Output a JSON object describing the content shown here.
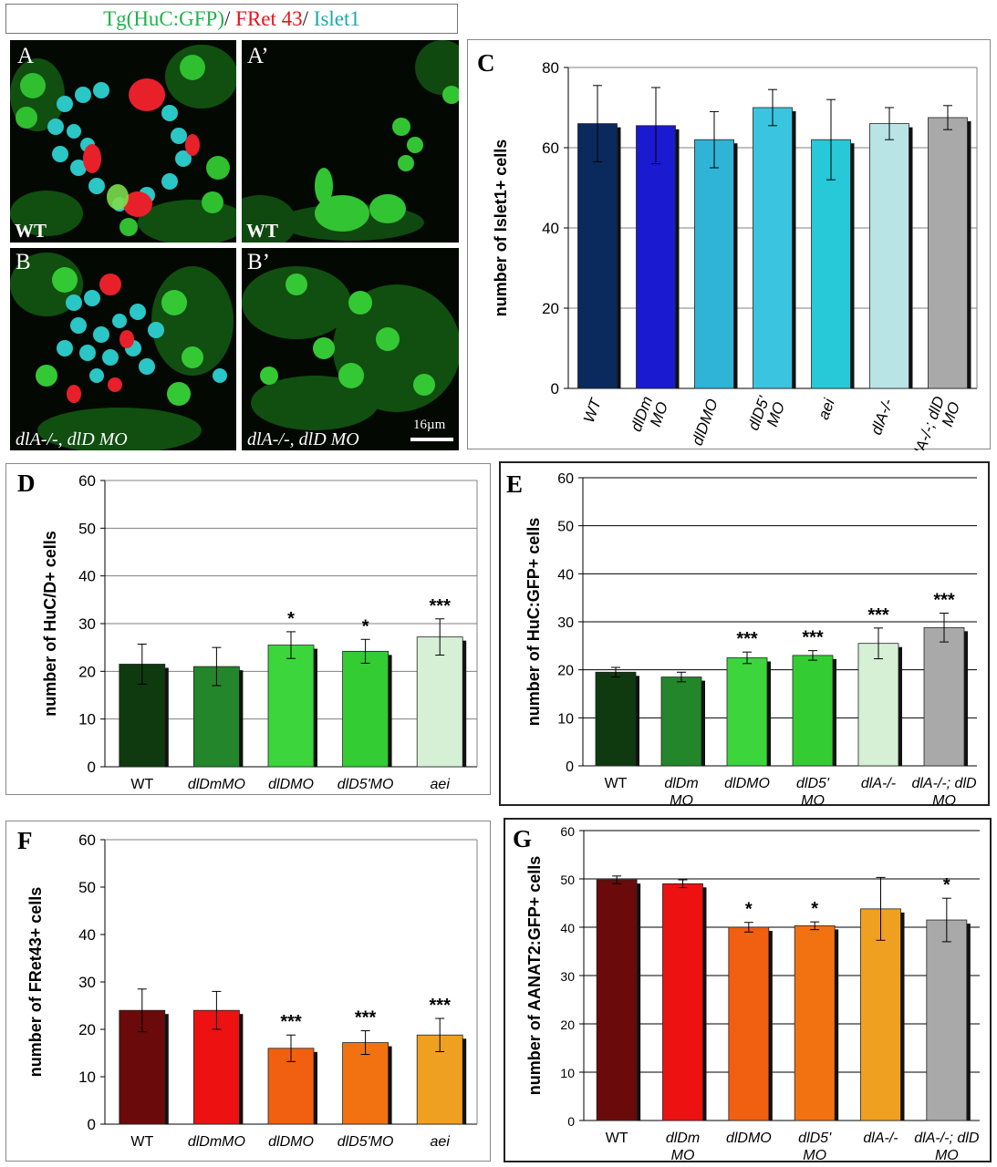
{
  "legend": {
    "huc": "Tg(HuC:GFP)",
    "sep1": "/ ",
    "fret": "FRet 43",
    "sep2": "/ ",
    "islet": "Islet1"
  },
  "images": {
    "a": {
      "letter": "A",
      "label": "WT"
    },
    "a_prime": {
      "letter": "A’",
      "label": "WT"
    },
    "b": {
      "letter": "B",
      "label": "dlA-/-, dlD MO"
    },
    "b_prime": {
      "letter": "B’",
      "label": "dlA-/-, dlD MO"
    },
    "scale": "16µm"
  },
  "colors": {
    "grid": "#808080",
    "axis": "#333333",
    "shadow": "#111111",
    "text": "#000000"
  },
  "chart_data": [
    {
      "id": "C",
      "letter": "C",
      "type": "bar",
      "ylabel": "number of Islet1+ cells",
      "ylim": [
        0,
        80
      ],
      "ticks": [
        0,
        20,
        40,
        60,
        80
      ],
      "categories": [
        "WT",
        "dlDm MO",
        "dlDMO",
        "dlD5' MO",
        "aei",
        "dlA-/-",
        "dlA-/-; dlD MO"
      ],
      "values": [
        66,
        65.5,
        62,
        70,
        62,
        66,
        67.5
      ],
      "errors": [
        9.5,
        9.5,
        7,
        4.5,
        10,
        4,
        3
      ],
      "significance": [
        "",
        "",
        "",
        "",
        "",
        "",
        ""
      ],
      "bar_colors": [
        "#0a2a5e",
        "#1a1ad0",
        "#2fb3d6",
        "#3bc4e0",
        "#27c9d8",
        "#b8e4e6",
        "#a9a9a9"
      ]
    },
    {
      "id": "D",
      "letter": "D",
      "type": "bar",
      "ylabel": "number of HuC/D+ cells",
      "ylim": [
        0,
        60
      ],
      "ticks": [
        0,
        10,
        20,
        30,
        40,
        50,
        60
      ],
      "categories": [
        "WT",
        "dlDmMO",
        "dlDMO",
        "dlD5'MO",
        "aei"
      ],
      "values": [
        21.5,
        21,
        25.5,
        24.2,
        27.2
      ],
      "errors": [
        4.2,
        4,
        2.8,
        2.5,
        3.8
      ],
      "significance": [
        "",
        "",
        "*",
        "*",
        "***"
      ],
      "bar_colors": [
        "#0f3a10",
        "#23862a",
        "#3cd63c",
        "#33cc33",
        "#d6f0d6"
      ]
    },
    {
      "id": "E",
      "letter": "E",
      "type": "bar",
      "ylabel": "number of HuC:GFP+ cells",
      "ylim": [
        0,
        60
      ],
      "ticks": [
        0,
        10,
        20,
        30,
        40,
        50,
        60
      ],
      "categories": [
        "WT",
        "dlDm MO",
        "dlDMO",
        "dlD5' MO",
        "dlA-/-",
        "dlA-/-; dlD MO"
      ],
      "values": [
        19.5,
        18.5,
        22.5,
        23,
        25.5,
        28.8
      ],
      "errors": [
        1,
        1,
        1.2,
        1,
        3.2,
        3
      ],
      "significance": [
        "",
        "",
        "***",
        "***",
        "***",
        "***"
      ],
      "bar_colors": [
        "#0f3a10",
        "#23862a",
        "#3cd63c",
        "#33cc33",
        "#d6f0d6",
        "#a9a9a9"
      ]
    },
    {
      "id": "F",
      "letter": "F",
      "type": "bar",
      "ylabel": "number of FRet43+ cells",
      "ylim": [
        0,
        60
      ],
      "ticks": [
        0,
        10,
        20,
        30,
        40,
        50,
        60
      ],
      "categories": [
        "WT",
        "dlDmMO",
        "dlDMO",
        "dlD5'MO",
        "aei"
      ],
      "values": [
        24,
        24,
        16,
        17.2,
        18.8
      ],
      "errors": [
        4.5,
        4,
        2.8,
        2.5,
        3.5
      ],
      "significance": [
        "",
        "",
        "***",
        "***",
        "***"
      ],
      "bar_colors": [
        "#6b0a0a",
        "#ee1111",
        "#f06010",
        "#f27212",
        "#f0a020"
      ]
    },
    {
      "id": "G",
      "letter": "G",
      "type": "bar",
      "ylabel": "number of AANAT2:GFP+ cells",
      "ylim": [
        0,
        60
      ],
      "ticks": [
        0,
        10,
        20,
        30,
        40,
        50,
        60
      ],
      "categories": [
        "WT",
        "dlDm MO",
        "dlDMO",
        "dlD5' MO",
        "dlA-/-",
        "dlA-/-; dlD MO"
      ],
      "values": [
        49.8,
        49,
        40,
        40.3,
        43.8,
        41.5
      ],
      "errors": [
        0.8,
        0.8,
        1,
        0.8,
        6.5,
        4.5
      ],
      "significance": [
        "",
        "",
        "*",
        "*",
        "",
        "*"
      ],
      "bar_colors": [
        "#6b0a0a",
        "#ee1111",
        "#f06010",
        "#f27212",
        "#f0a020",
        "#a9a9a9"
      ]
    }
  ]
}
